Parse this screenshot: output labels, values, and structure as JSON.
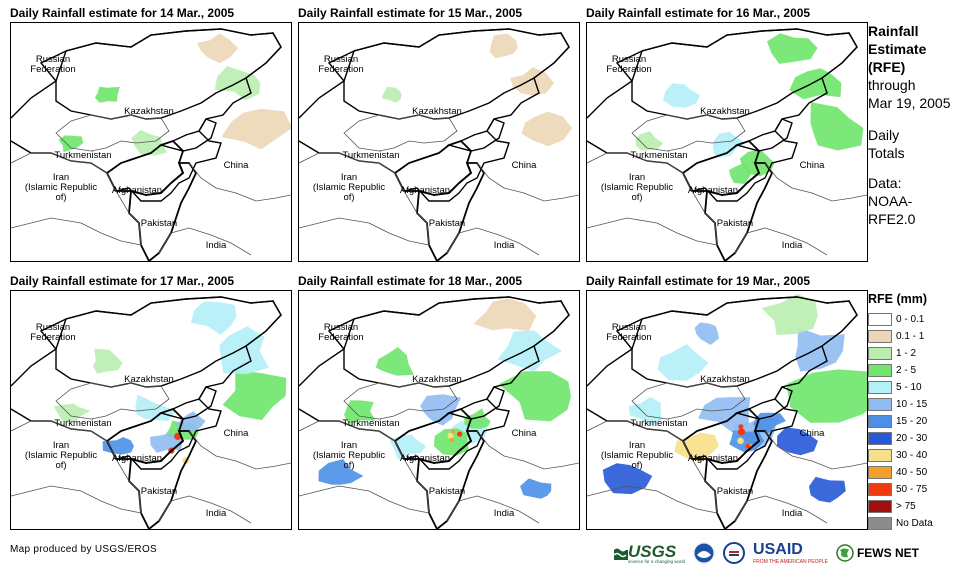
{
  "panels": [
    {
      "title": "Daily Rainfall estimate for 14 Mar., 2005",
      "intensity": 1
    },
    {
      "title": "Daily Rainfall estimate for 15 Mar., 2005",
      "intensity": 0
    },
    {
      "title": "Daily Rainfall estimate for 16 Mar., 2005",
      "intensity": 2
    },
    {
      "title": "Daily Rainfall estimate for 17 Mar., 2005",
      "intensity": 3
    },
    {
      "title": "Daily Rainfall estimate for 18 Mar., 2005",
      "intensity": 4
    },
    {
      "title": "Daily Rainfall estimate for 19 Mar., 2005",
      "intensity": 5
    }
  ],
  "place_labels": {
    "russia": "Russian\nFederation",
    "kazakhstan": "Kazakhstan",
    "turkmenistan": "Turkmenistan",
    "iran": "Iran\n(Islamic Republic of)",
    "afghanistan": "Afghanistan",
    "pakistan": "Pakistan",
    "china": "China",
    "india": "India"
  },
  "side_text": {
    "heading": "Rainfall\nEstimate\n(RFE)",
    "through": "through",
    "date": "Mar 19, 2005",
    "totals": "Daily\nTotals",
    "data_label": "Data:",
    "data_source": "NOAA-\nRFE2.0"
  },
  "legend": {
    "title": "RFE (mm)",
    "items": [
      {
        "label": "0 - 0.1",
        "color": "#ffffff"
      },
      {
        "label": "0.1 - 1",
        "color": "#ecd6b5"
      },
      {
        "label": "1 - 2",
        "color": "#b9eeb0"
      },
      {
        "label": "2 - 5",
        "color": "#6fe66c"
      },
      {
        "label": "5 - 10",
        "color": "#b3f0f7"
      },
      {
        "label": "10 - 15",
        "color": "#8fbcf3"
      },
      {
        "label": "15 - 20",
        "color": "#4d8fe8"
      },
      {
        "label": "20 - 30",
        "color": "#2659d8"
      },
      {
        "label": "30 - 40",
        "color": "#f7e08a"
      },
      {
        "label": "40 - 50",
        "color": "#f5a02a"
      },
      {
        "label": "50 - 75",
        "color": "#f03a10"
      },
      {
        "label": "> 75",
        "color": "#a01010"
      },
      {
        "label": "No Data",
        "color": "#8c8c8c"
      }
    ]
  },
  "footer": {
    "credit": "Map produced by USGS/EROS",
    "logos": {
      "usgs": "USGS",
      "usgs_tag": "science for a changing world",
      "usaid": "USAID",
      "usaid_tag": "FROM THE AMERICAN PEOPLE",
      "fews": "FEWS NET"
    }
  }
}
